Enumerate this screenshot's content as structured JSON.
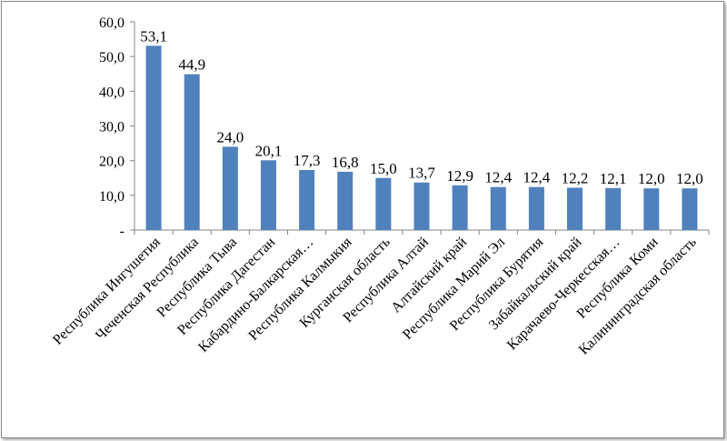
{
  "chart_data": {
    "type": "bar",
    "categories": [
      "Республика Ингушетия",
      "Чеченская Республика",
      "Республика Тыва",
      "Республика Дагестан",
      "Кабардино-Балкарская…",
      "Республика Калмыкия",
      "Курганская область",
      "Республика Алтай",
      "Алтайский край",
      "Республика Марий Эл",
      "Республика Бурятия",
      "Забайкальский край",
      "Карачаево-Черкесская…",
      "Республика Коми",
      "Калининградская область"
    ],
    "values": [
      53.1,
      44.9,
      24.0,
      20.1,
      17.3,
      16.8,
      15.0,
      13.7,
      12.9,
      12.4,
      12.4,
      12.2,
      12.1,
      12.0,
      12.0
    ],
    "data_labels": [
      "53,1",
      "44,9",
      "24,0",
      "20,1",
      "17,3",
      "16,8",
      "15,0",
      "13,7",
      "12,9",
      "12,4",
      "12,4",
      "12,2",
      "12,1",
      "12,0",
      "12,0"
    ],
    "y_ticks": [
      0,
      10,
      20,
      30,
      40,
      50,
      60
    ],
    "y_tick_labels": [
      "-",
      "10,0",
      "20,0",
      "30,0",
      "40,0",
      "50,0",
      "60,0"
    ],
    "ylim": [
      0,
      60
    ],
    "grid": false,
    "legend": "none",
    "bar_color": "#4f81bd",
    "title": "",
    "xlabel": "",
    "ylabel": ""
  }
}
